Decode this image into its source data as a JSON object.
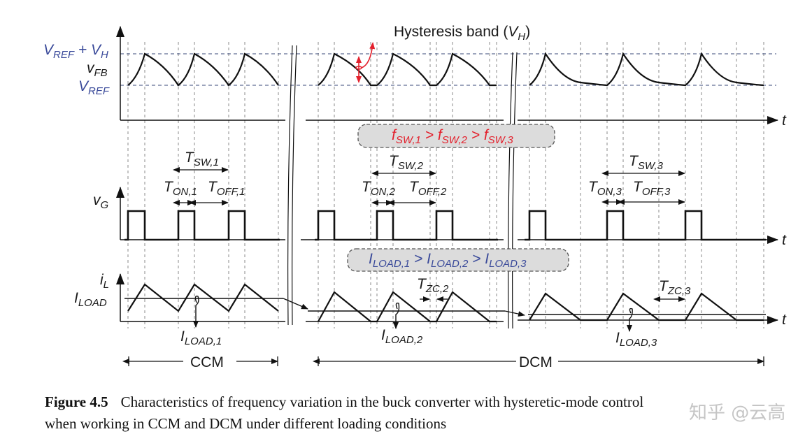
{
  "title": {
    "main": "Hysteresis band (",
    "v": "V",
    "sub": "H",
    "end": ")"
  },
  "axis_t": "t",
  "labels": {
    "vref_vh": {
      "v1": "V",
      "s1": "REF",
      "plus": " + ",
      "v2": "V",
      "s2": "H"
    },
    "vfb": {
      "main": "v",
      "sub": "FB"
    },
    "vref": {
      "main": "V",
      "sub": "REF"
    },
    "vg": {
      "main": "v",
      "sub": "G"
    },
    "il": {
      "main": "i",
      "sub": "L"
    },
    "iload": {
      "main": "I",
      "sub": "LOAD"
    }
  },
  "timing": {
    "tsw1": {
      "main": "T",
      "sub": "SW,1"
    },
    "ton1": {
      "main": "T",
      "sub": "ON,1"
    },
    "toff1": {
      "main": "T",
      "sub": "OFF,1"
    },
    "tsw2": {
      "main": "T",
      "sub": "SW,2"
    },
    "ton2": {
      "main": "T",
      "sub": "ON,2"
    },
    "toff2": {
      "main": "T",
      "sub": "OFF,2"
    },
    "tsw3": {
      "main": "T",
      "sub": "SW,3"
    },
    "ton3": {
      "main": "T",
      "sub": "ON,3"
    },
    "toff3": {
      "main": "T",
      "sub": "OFF,3"
    },
    "tzc2": {
      "main": "T",
      "sub": "ZC,2"
    },
    "tzc3": {
      "main": "T",
      "sub": "ZC,3"
    }
  },
  "iload_labels": {
    "l1": {
      "main": "I",
      "sub": "LOAD,1"
    },
    "l2": {
      "main": "I",
      "sub": "LOAD,2"
    },
    "l3": {
      "main": "I",
      "sub": "LOAD,3"
    }
  },
  "freq_box": {
    "f": "f",
    "s1": "SW,1",
    "gt": " > ",
    "s2": "SW,2",
    "s3": "SW,3",
    "color": "#e3212d"
  },
  "load_box": {
    "i": "I",
    "s1": "LOAD,1",
    "gt": " > ",
    "s2": "LOAD,2",
    "s3": "LOAD,3",
    "color": "#3a4a9a"
  },
  "modes": {
    "ccm": "CCM",
    "dcm": "DCM"
  },
  "caption": {
    "figure": "Figure 4.5",
    "line1": "Characteristics of frequency variation in the buck converter with hysteretic-mode control",
    "line2": "when working in CCM and DCM under different loading conditions"
  },
  "watermark": "知乎 @云高"
}
